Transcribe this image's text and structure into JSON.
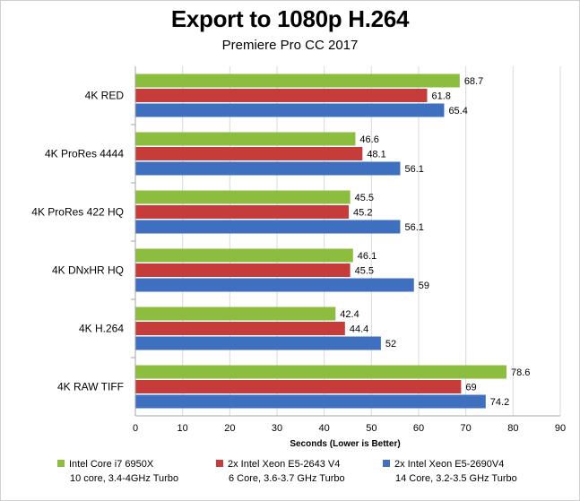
{
  "chart_data": {
    "type": "bar",
    "orientation": "horizontal",
    "title": "Export to 1080p H.264",
    "subtitle": "Premiere Pro CC 2017",
    "xlabel": "Seconds (Lower is Better)",
    "ylabel": "",
    "xlim": [
      0,
      90
    ],
    "xticks": [
      0,
      10,
      20,
      30,
      40,
      50,
      60,
      70,
      80,
      90
    ],
    "grid": true,
    "legend_position": "bottom",
    "categories": [
      "4K RED",
      "4K ProRes 4444",
      "4K ProRes 422 HQ",
      "4K DNxHR HQ",
      "4K H.264",
      "4K RAW TIFF"
    ],
    "series": [
      {
        "name": "Intel Core i7 6950X",
        "detail": "10 core, 3.4-4GHz Turbo",
        "color": "#8cbd3e",
        "values": [
          68.7,
          46.6,
          45.5,
          46.1,
          42.4,
          78.6
        ],
        "labels": [
          "68.7",
          "46.6",
          "45.5",
          "46.1",
          "42.4",
          "78.6"
        ]
      },
      {
        "name": "2x Intel Xeon E5-2643 V4",
        "detail": "6 Core, 3.6-3.7 GHz Turbo",
        "color": "#c63c3b",
        "values": [
          61.8,
          48.1,
          45.2,
          45.5,
          44.4,
          69
        ],
        "labels": [
          "61.8",
          "48.1",
          "45.2",
          "45.5",
          "44.4",
          "69"
        ]
      },
      {
        "name": "2x Intel Xeon E5-2690V4",
        "detail": "14 Core, 3.2-3.5 GHz Turbo",
        "color": "#3f6fbf",
        "values": [
          65.4,
          56.1,
          56.1,
          59,
          52,
          74.2
        ],
        "labels": [
          "65.4",
          "56.1",
          "56.1",
          "59",
          "52",
          "74.2"
        ]
      }
    ]
  }
}
